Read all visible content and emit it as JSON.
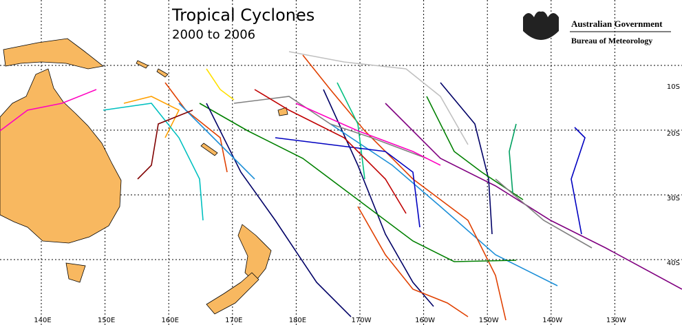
{
  "map": {
    "title": "Tropical Cyclones",
    "subtitle": "2000 to 2006",
    "logo": {
      "line1": "Australian Government",
      "line2": "Bureau of Meteorology"
    },
    "lon_labels": [
      "140E",
      "150E",
      "160E",
      "170E",
      "180E",
      "170W",
      "160W",
      "150W",
      "140W",
      "130W"
    ],
    "lat_labels": [
      "10S",
      "20S",
      "30S",
      "40S"
    ]
  }
}
